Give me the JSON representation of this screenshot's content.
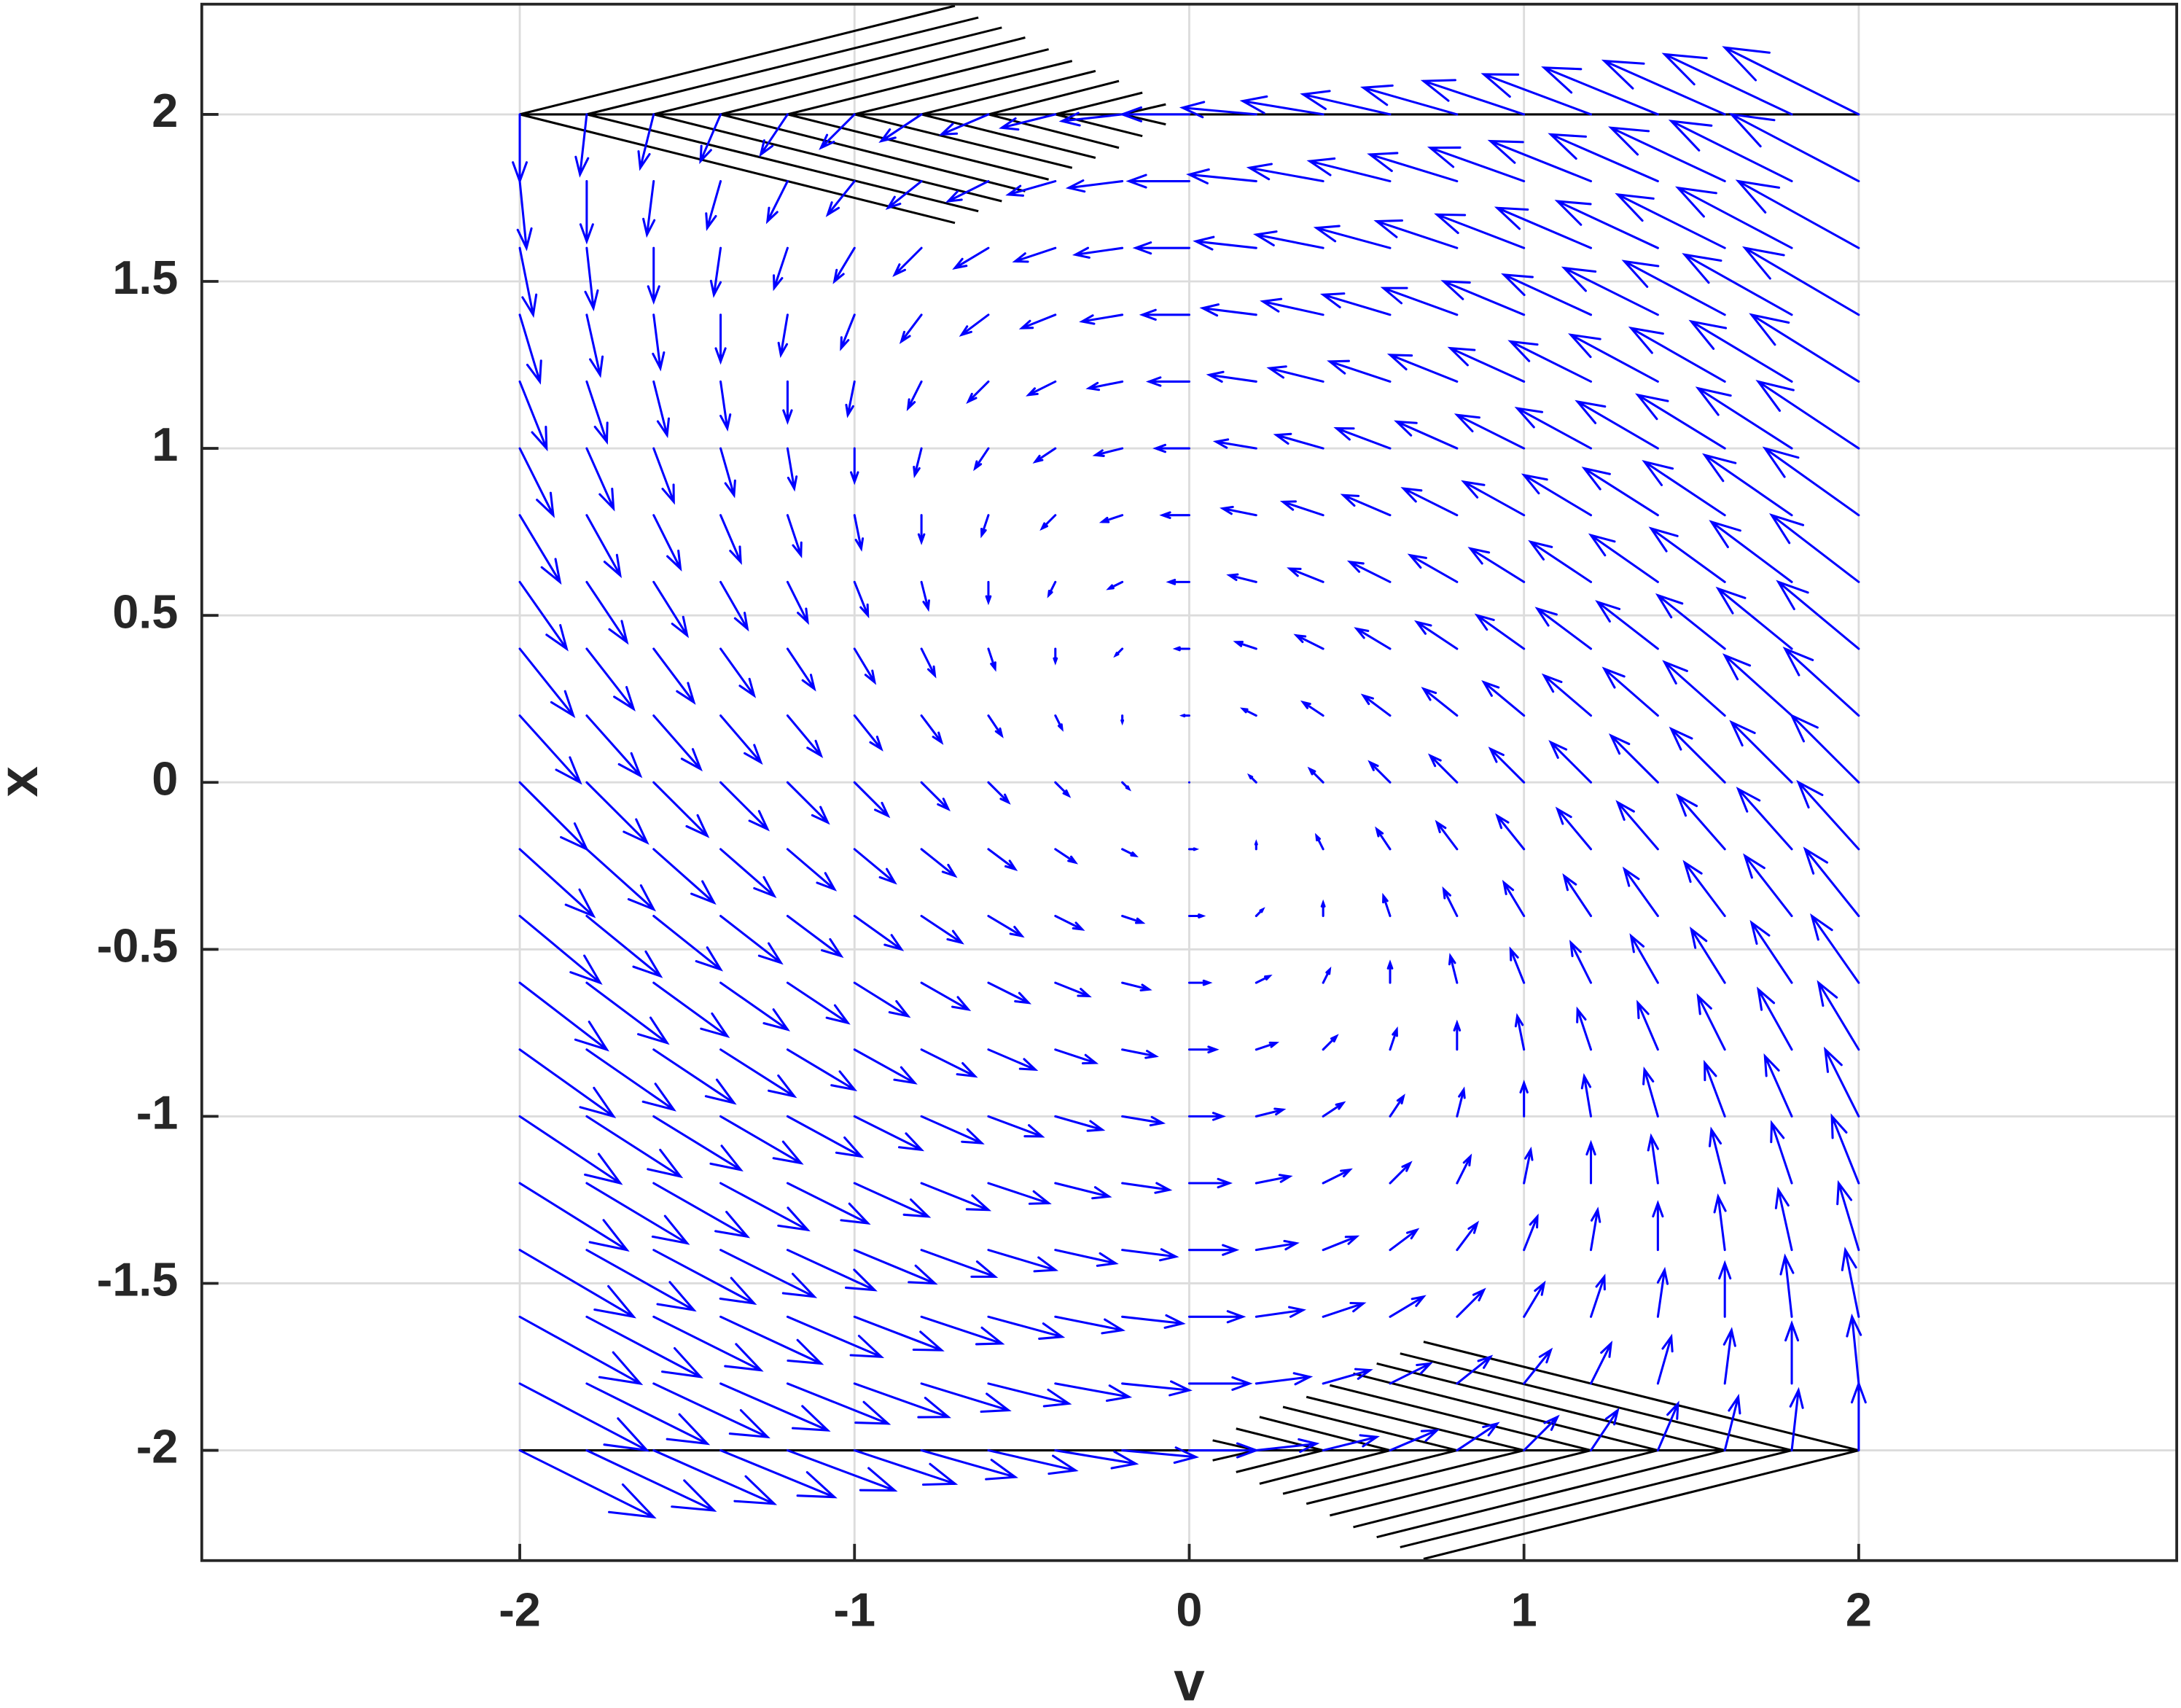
{
  "chart_data": {
    "type": "quiver",
    "xlabel": "v",
    "ylabel": "x",
    "xlim": [
      -2.95,
      2.95
    ],
    "ylim": [
      -2.33,
      2.33
    ],
    "xticks": [
      -2,
      -1,
      0,
      1,
      2
    ],
    "yticks": [
      -2,
      -1.5,
      -1,
      -0.5,
      0,
      0.5,
      1,
      1.5,
      2
    ],
    "grid": true,
    "color": "#0000ff",
    "line_color": "#000000",
    "x": [
      -2,
      -1.8,
      -1.6,
      -1.4,
      -1.2,
      -1,
      -0.8,
      -0.6,
      -0.4,
      -0.2,
      0,
      0.2,
      0.4,
      0.6,
      0.8,
      1,
      1.2,
      1.4,
      1.6,
      1.8,
      2
    ],
    "y": [
      -2,
      -1.8,
      -1.6,
      -1.4,
      -1.2,
      -1,
      -0.8,
      -0.6,
      -0.4,
      -0.2,
      0,
      0.2,
      0.4,
      0.6,
      0.8,
      1,
      1.2,
      1.4,
      1.6,
      1.8,
      2
    ],
    "u": [
      [
        4,
        3.8,
        3.6,
        3.4,
        3.2,
        3,
        2.8,
        2.6,
        2.4,
        2.2,
        2,
        1.8,
        1.6,
        1.4,
        1.2,
        1,
        0.8,
        0.6,
        0.4,
        0.2,
        0
      ],
      [
        3.8,
        3.6,
        3.4,
        3.2,
        3,
        2.8,
        2.6,
        2.4,
        2.2,
        2,
        1.8,
        1.6,
        1.4,
        1.2,
        1,
        0.8,
        0.6,
        0.4,
        0.2,
        0,
        -0.2
      ],
      [
        3.6,
        3.4,
        3.2,
        3,
        2.8,
        2.6,
        2.4,
        2.2,
        2,
        1.8,
        1.6,
        1.4,
        1.2,
        1,
        0.8,
        0.6,
        0.4,
        0.2,
        0,
        -0.2,
        -0.4
      ],
      [
        3.4,
        3.2,
        3,
        2.8,
        2.6,
        2.4,
        2.2,
        2,
        1.8,
        1.6,
        1.4,
        1.2,
        1,
        0.8,
        0.6,
        0.4,
        0.2,
        0,
        -0.2,
        -0.4,
        -0.6
      ],
      [
        3.2,
        3,
        2.8,
        2.6,
        2.4,
        2.2,
        2,
        1.8,
        1.6,
        1.4,
        1.2,
        1,
        0.8,
        0.6,
        0.4,
        0.2,
        0,
        -0.2,
        -0.4,
        -0.6,
        -0.8
      ],
      [
        3,
        2.8,
        2.6,
        2.4,
        2.2,
        2,
        1.8,
        1.6,
        1.4,
        1.2,
        1,
        0.8,
        0.6,
        0.4,
        0.2,
        0,
        -0.2,
        -0.4,
        -0.6,
        -0.8,
        -1
      ],
      [
        2.8,
        2.6,
        2.4,
        2.2,
        2,
        1.8,
        1.6,
        1.4,
        1.2,
        1,
        0.8,
        0.6,
        0.4,
        0.2,
        0,
        -0.2,
        -0.4,
        -0.6,
        -0.8,
        -1,
        -1.2
      ],
      [
        2.6,
        2.4,
        2.2,
        2,
        1.8,
        1.6,
        1.4,
        1.2,
        1,
        0.8,
        0.6,
        0.4,
        0.2,
        0,
        -0.2,
        -0.4,
        -0.6,
        -0.8,
        -1,
        -1.2,
        -1.4
      ],
      [
        2.4,
        2.2,
        2,
        1.8,
        1.6,
        1.4,
        1.2,
        1,
        0.8,
        0.6,
        0.4,
        0.2,
        0,
        -0.2,
        -0.4,
        -0.6,
        -0.8,
        -1,
        -1.2,
        -1.4,
        -1.6
      ],
      [
        2.2,
        2,
        1.8,
        1.6,
        1.4,
        1.2,
        1,
        0.8,
        0.6,
        0.4,
        0.2,
        0,
        -0.2,
        -0.4,
        -0.6,
        -0.8,
        -1,
        -1.2,
        -1.4,
        -1.6,
        -1.8
      ],
      [
        2,
        1.8,
        1.6,
        1.4,
        1.2,
        1,
        0.8,
        0.6,
        0.4,
        0.2,
        0,
        -0.2,
        -0.4,
        -0.6,
        -0.8,
        -1,
        -1.2,
        -1.4,
        -1.6,
        -1.8,
        -2
      ],
      [
        1.8,
        1.6,
        1.4,
        1.2,
        1,
        0.8,
        0.6,
        0.4,
        0.2,
        0,
        -0.2,
        -0.4,
        -0.6,
        -0.8,
        -1,
        -1.2,
        -1.4,
        -1.6,
        -1.8,
        -2,
        -2.2
      ],
      [
        1.6,
        1.4,
        1.2,
        1,
        0.8,
        0.6,
        0.4,
        0.2,
        0,
        -0.2,
        -0.4,
        -0.6,
        -0.8,
        -1,
        -1.2,
        -1.4,
        -1.6,
        -1.8,
        -2,
        -2.2,
        -2.4
      ],
      [
        1.4,
        1.2,
        1,
        0.8,
        0.6,
        0.4,
        0.2,
        0,
        -0.2,
        -0.4,
        -0.6,
        -0.8,
        -1,
        -1.2,
        -1.4,
        -1.6,
        -1.8,
        -2,
        -2.2,
        -2.4,
        -2.6
      ],
      [
        1.2,
        1,
        0.8,
        0.6,
        0.4,
        0.2,
        0,
        -0.2,
        -0.4,
        -0.6,
        -0.8,
        -1,
        -1.2,
        -1.4,
        -1.6,
        -1.8,
        -2,
        -2.2,
        -2.4,
        -2.6,
        -2.8
      ],
      [
        1,
        0.8,
        0.6,
        0.4,
        0.2,
        0,
        -0.2,
        -0.4,
        -0.6,
        -0.8,
        -1,
        -1.2,
        -1.4,
        -1.6,
        -1.8,
        -2,
        -2.2,
        -2.4,
        -2.6,
        -2.8,
        -3
      ],
      [
        0.8,
        0.6,
        0.4,
        0.2,
        0,
        -0.2,
        -0.4,
        -0.6,
        -0.8,
        -1,
        -1.2,
        -1.4,
        -1.6,
        -1.8,
        -2,
        -2.2,
        -2.4,
        -2.6,
        -2.8,
        -3,
        -3.2
      ],
      [
        0.6,
        0.4,
        0.2,
        0,
        -0.2,
        -0.4,
        -0.6,
        -0.8,
        -1,
        -1.2,
        -1.4,
        -1.6,
        -1.8,
        -2,
        -2.2,
        -2.4,
        -2.6,
        -2.8,
        -3,
        -3.2,
        -3.4
      ],
      [
        0.4,
        0.2,
        0,
        -0.2,
        -0.4,
        -0.6,
        -0.8,
        -1,
        -1.2,
        -1.4,
        -1.6,
        -1.8,
        -2,
        -2.2,
        -2.4,
        -2.6,
        -2.8,
        -3,
        -3.2,
        -3.4,
        -3.6
      ],
      [
        0.2,
        0,
        -0.2,
        -0.4,
        -0.6,
        -0.8,
        -1,
        -1.2,
        -1.4,
        -1.6,
        -1.8,
        -2,
        -2.2,
        -2.4,
        -2.6,
        -2.8,
        -3,
        -3.2,
        -3.4,
        -3.6,
        -3.8
      ],
      [
        0,
        -0.2,
        -0.4,
        -0.6,
        -0.8,
        -1,
        -1.2,
        -1.4,
        -1.6,
        -1.8,
        -2,
        -2.2,
        -2.4,
        -2.6,
        -2.8,
        -3,
        -3.2,
        -3.4,
        -3.6,
        -3.8,
        -4
      ]
    ],
    "v": [
      [
        -2,
        -1.8,
        -1.6,
        -1.4,
        -1.2,
        -1,
        -0.8,
        -0.6,
        -0.4,
        -0.2,
        0,
        0.2,
        0.4,
        0.6,
        0.8,
        1,
        1.2,
        1.4,
        1.6,
        1.8,
        2
      ],
      [
        -2,
        -1.8,
        -1.6,
        -1.4,
        -1.2,
        -1,
        -0.8,
        -0.6,
        -0.4,
        -0.2,
        0,
        0.2,
        0.4,
        0.6,
        0.8,
        1,
        1.2,
        1.4,
        1.6,
        1.8,
        2
      ],
      [
        -2,
        -1.8,
        -1.6,
        -1.4,
        -1.2,
        -1,
        -0.8,
        -0.6,
        -0.4,
        -0.2,
        0,
        0.2,
        0.4,
        0.6,
        0.8,
        1,
        1.2,
        1.4,
        1.6,
        1.8,
        2
      ],
      [
        -2,
        -1.8,
        -1.6,
        -1.4,
        -1.2,
        -1,
        -0.8,
        -0.6,
        -0.4,
        -0.2,
        0,
        0.2,
        0.4,
        0.6,
        0.8,
        1,
        1.2,
        1.4,
        1.6,
        1.8,
        2
      ],
      [
        -2,
        -1.8,
        -1.6,
        -1.4,
        -1.2,
        -1,
        -0.8,
        -0.6,
        -0.4,
        -0.2,
        0,
        0.2,
        0.4,
        0.6,
        0.8,
        1,
        1.2,
        1.4,
        1.6,
        1.8,
        2
      ],
      [
        -2,
        -1.8,
        -1.6,
        -1.4,
        -1.2,
        -1,
        -0.8,
        -0.6,
        -0.4,
        -0.2,
        0,
        0.2,
        0.4,
        0.6,
        0.8,
        1,
        1.2,
        1.4,
        1.6,
        1.8,
        2
      ],
      [
        -2,
        -1.8,
        -1.6,
        -1.4,
        -1.2,
        -1,
        -0.8,
        -0.6,
        -0.4,
        -0.2,
        0,
        0.2,
        0.4,
        0.6,
        0.8,
        1,
        1.2,
        1.4,
        1.6,
        1.8,
        2
      ],
      [
        -2,
        -1.8,
        -1.6,
        -1.4,
        -1.2,
        -1,
        -0.8,
        -0.6,
        -0.4,
        -0.2,
        0,
        0.2,
        0.4,
        0.6,
        0.8,
        1,
        1.2,
        1.4,
        1.6,
        1.8,
        2
      ],
      [
        -2,
        -1.8,
        -1.6,
        -1.4,
        -1.2,
        -1,
        -0.8,
        -0.6,
        -0.4,
        -0.2,
        0,
        0.2,
        0.4,
        0.6,
        0.8,
        1,
        1.2,
        1.4,
        1.6,
        1.8,
        2
      ],
      [
        -2,
        -1.8,
        -1.6,
        -1.4,
        -1.2,
        -1,
        -0.8,
        -0.6,
        -0.4,
        -0.2,
        0,
        0.2,
        0.4,
        0.6,
        0.8,
        1,
        1.2,
        1.4,
        1.6,
        1.8,
        2
      ],
      [
        -2,
        -1.8,
        -1.6,
        -1.4,
        -1.2,
        -1,
        -0.8,
        -0.6,
        -0.4,
        -0.2,
        0,
        0.2,
        0.4,
        0.6,
        0.8,
        1,
        1.2,
        1.4,
        1.6,
        1.8,
        2
      ],
      [
        -2,
        -1.8,
        -1.6,
        -1.4,
        -1.2,
        -1,
        -0.8,
        -0.6,
        -0.4,
        -0.2,
        0,
        0.2,
        0.4,
        0.6,
        0.8,
        1,
        1.2,
        1.4,
        1.6,
        1.8,
        2
      ],
      [
        -2,
        -1.8,
        -1.6,
        -1.4,
        -1.2,
        -1,
        -0.8,
        -0.6,
        -0.4,
        -0.2,
        0,
        0.2,
        0.4,
        0.6,
        0.8,
        1,
        1.2,
        1.4,
        1.6,
        1.8,
        2
      ],
      [
        -2,
        -1.8,
        -1.6,
        -1.4,
        -1.2,
        -1,
        -0.8,
        -0.6,
        -0.4,
        -0.2,
        0,
        0.2,
        0.4,
        0.6,
        0.8,
        1,
        1.2,
        1.4,
        1.6,
        1.8,
        2
      ],
      [
        -2,
        -1.8,
        -1.6,
        -1.4,
        -1.2,
        -1,
        -0.8,
        -0.6,
        -0.4,
        -0.2,
        0,
        0.2,
        0.4,
        0.6,
        0.8,
        1,
        1.2,
        1.4,
        1.6,
        1.8,
        2
      ],
      [
        -2,
        -1.8,
        -1.6,
        -1.4,
        -1.2,
        -1,
        -0.8,
        -0.6,
        -0.4,
        -0.2,
        0,
        0.2,
        0.4,
        0.6,
        0.8,
        1,
        1.2,
        1.4,
        1.6,
        1.8,
        2
      ],
      [
        -2,
        -1.8,
        -1.6,
        -1.4,
        -1.2,
        -1,
        -0.8,
        -0.6,
        -0.4,
        -0.2,
        0,
        0.2,
        0.4,
        0.6,
        0.8,
        1,
        1.2,
        1.4,
        1.6,
        1.8,
        2
      ],
      [
        -2,
        -1.8,
        -1.6,
        -1.4,
        -1.2,
        -1,
        -0.8,
        -0.6,
        -0.4,
        -0.2,
        0,
        0.2,
        0.4,
        0.6,
        0.8,
        1,
        1.2,
        1.4,
        1.6,
        1.8,
        2
      ],
      [
        -2,
        -1.8,
        -1.6,
        -1.4,
        -1.2,
        -1,
        -0.8,
        -0.6,
        -0.4,
        -0.2,
        0,
        0.2,
        0.4,
        0.6,
        0.8,
        1,
        1.2,
        1.4,
        1.6,
        1.8,
        2
      ],
      [
        -2,
        -1.8,
        -1.6,
        -1.4,
        -1.2,
        -1,
        -0.8,
        -0.6,
        -0.4,
        -0.2,
        0,
        0.2,
        0.4,
        0.6,
        0.8,
        1,
        1.2,
        1.4,
        1.6,
        1.8,
        2
      ],
      [
        -2,
        -1.8,
        -1.6,
        -1.4,
        -1.2,
        -1,
        -0.8,
        -0.6,
        -0.4,
        -0.2,
        0,
        0.2,
        0.4,
        0.6,
        0.8,
        1,
        1.2,
        1.4,
        1.6,
        1.8,
        2
      ]
    ],
    "segments": [
      [
        -2,
        2,
        2,
        2
      ],
      [
        -2,
        -2,
        2,
        -2
      ],
      [
        -2,
        2,
        -0.7,
        2.325
      ],
      [
        -1.8,
        2,
        -0.63,
        2.29
      ],
      [
        -1.6,
        2,
        -0.56,
        2.26
      ],
      [
        -1.4,
        2,
        -0.49,
        2.23
      ],
      [
        -1.2,
        2,
        -0.42,
        2.195
      ],
      [
        -1,
        2,
        -0.35,
        2.16
      ],
      [
        -0.8,
        2,
        -0.28,
        2.13
      ],
      [
        -0.6,
        2,
        -0.21,
        2.1
      ],
      [
        -0.4,
        2,
        -0.14,
        2.065
      ],
      [
        -0.2,
        2,
        -0.07,
        2.03
      ],
      [
        -2,
        2,
        -0.7,
        1.675
      ],
      [
        -1.8,
        2,
        -0.63,
        1.71
      ],
      [
        -1.6,
        2,
        -0.56,
        1.74
      ],
      [
        -1.4,
        2,
        -0.49,
        1.77
      ],
      [
        -1.2,
        2,
        -0.42,
        1.805
      ],
      [
        -1,
        2,
        -0.35,
        1.84
      ],
      [
        -0.8,
        2,
        -0.28,
        1.87
      ],
      [
        -0.6,
        2,
        -0.21,
        1.9
      ],
      [
        -0.4,
        2,
        -0.14,
        1.935
      ],
      [
        -0.2,
        2,
        -0.07,
        1.97
      ],
      [
        2,
        -2,
        0.7,
        -2.325
      ],
      [
        1.8,
        -2,
        0.63,
        -2.29
      ],
      [
        1.6,
        -2,
        0.56,
        -2.26
      ],
      [
        1.4,
        -2,
        0.49,
        -2.23
      ],
      [
        1.2,
        -2,
        0.42,
        -2.195
      ],
      [
        1,
        -2,
        0.35,
        -2.16
      ],
      [
        0.8,
        -2,
        0.28,
        -2.13
      ],
      [
        0.6,
        -2,
        0.21,
        -2.1
      ],
      [
        0.4,
        -2,
        0.14,
        -2.065
      ],
      [
        0.2,
        -2,
        0.07,
        -2.03
      ],
      [
        2,
        -2,
        0.7,
        -1.675
      ],
      [
        1.8,
        -2,
        0.63,
        -1.71
      ],
      [
        1.6,
        -2,
        0.56,
        -1.74
      ],
      [
        1.4,
        -2,
        0.49,
        -1.77
      ],
      [
        1.2,
        -2,
        0.42,
        -1.805
      ],
      [
        1,
        -2,
        0.35,
        -1.84
      ],
      [
        0.8,
        -2,
        0.28,
        -1.87
      ],
      [
        0.6,
        -2,
        0.21,
        -1.9
      ],
      [
        0.4,
        -2,
        0.14,
        -1.935
      ],
      [
        0.2,
        -2,
        0.07,
        -1.97
      ]
    ]
  }
}
